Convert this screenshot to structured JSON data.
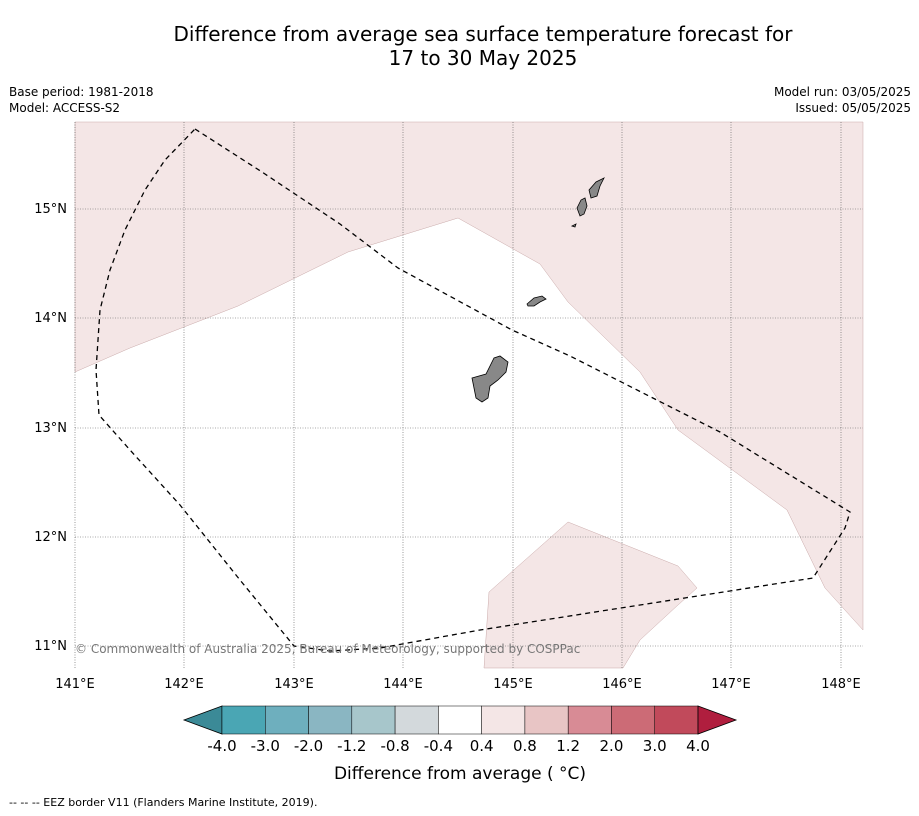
{
  "title_line1": "Difference from average sea surface temperature forecast for",
  "title_line2": "17 to 30 May 2025",
  "base_period": "Base period: 1981-2018",
  "model": "Model: ACCESS-S2",
  "model_run": "Model run: 03/05/2025",
  "issued": "Issued: 05/05/2025",
  "credit": "© Commonwealth of Australia 2025, Bureau of Meteorology, supported by COSPPac",
  "lon_labels": [
    "141°E",
    "142°E",
    "143°E",
    "144°E",
    "145°E",
    "146°E",
    "147°E",
    "148°E"
  ],
  "lat_labels": [
    "15°N",
    "14°N",
    "13°N",
    "12°N",
    "11°N"
  ],
  "colorbar": {
    "label": "Difference from average ( °C)",
    "ticks": [
      "-4.0",
      "-3.0",
      "-2.0",
      "-1.2",
      "-0.8",
      "-0.4",
      "0.4",
      "0.8",
      "1.2",
      "2.0",
      "3.0",
      "4.0"
    ],
    "colors": [
      "#3b8a97",
      "#4aa6b4",
      "#6eafbe",
      "#8ab6c2",
      "#a7c6cb",
      "#d3d9dc",
      "#ffffff",
      "#f4e6e6",
      "#e8c5c5",
      "#d88b95",
      "#cc6b76",
      "#c14a5b",
      "#b01e3e"
    ]
  },
  "legend_note": "-- -- -- EEZ border V11 (Flanders Marine Institute, 2019).",
  "colors": {
    "anomaly_0_4_to_0_8": "#f4e6e6",
    "land": "#888888",
    "grid": "#555555"
  }
}
